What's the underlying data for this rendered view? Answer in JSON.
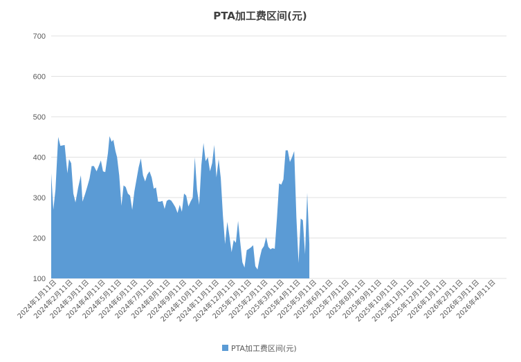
{
  "chart_data": {
    "type": "area",
    "title": "PTA加工费区间(元)",
    "xlabel": "",
    "ylabel": "",
    "ylim": [
      100,
      700
    ],
    "yticks": [
      100,
      200,
      300,
      400,
      500,
      600,
      700
    ],
    "grid": true,
    "legend_position": "bottom",
    "color": "#5b9bd5",
    "x_tick_labels": [
      "2024年1月11日",
      "2024年2月11日",
      "2024年3月11日",
      "2024年4月11日",
      "2024年5月11日",
      "2024年6月11日",
      "2024年7月11日",
      "2024年8月11日",
      "2024年9月11日",
      "2024年10月11日",
      "2024年11月11日",
      "2024年12月11日",
      "2025年1月11日",
      "2025年2月11日",
      "2025年3月11日",
      "2025年4月11日",
      "2025年5月11日",
      "2025年6月11日",
      "2025年7月11日",
      "2025年8月11日",
      "2025年9月11日",
      "2025年10月11日",
      "2025年11月11日",
      "2025年12月11日",
      "2026年1月11日",
      "2026年2月11日",
      "2026年3月11日",
      "2026年4月11日"
    ],
    "series": [
      {
        "name": "PTA加工费区间(元)",
        "points": [
          [
            "2024-01-11",
            360
          ],
          [
            "2024-01-15",
            270
          ],
          [
            "2024-01-19",
            320
          ],
          [
            "2024-01-24",
            450
          ],
          [
            "2024-01-28",
            428
          ],
          [
            "2024-02-05",
            430
          ],
          [
            "2024-02-10",
            360
          ],
          [
            "2024-02-13",
            395
          ],
          [
            "2024-02-17",
            385
          ],
          [
            "2024-02-21",
            310
          ],
          [
            "2024-02-25",
            288
          ],
          [
            "2024-03-01",
            325
          ],
          [
            "2024-03-06",
            355
          ],
          [
            "2024-03-09",
            290
          ],
          [
            "2024-03-14",
            310
          ],
          [
            "2024-03-18",
            328
          ],
          [
            "2024-03-22",
            347
          ],
          [
            "2024-03-26",
            378
          ],
          [
            "2024-03-30",
            378
          ],
          [
            "2024-04-04",
            365
          ],
          [
            "2024-04-08",
            378
          ],
          [
            "2024-04-12",
            392
          ],
          [
            "2024-04-16",
            365
          ],
          [
            "2024-04-20",
            363
          ],
          [
            "2024-04-25",
            410
          ],
          [
            "2024-04-28",
            452
          ],
          [
            "2024-05-02",
            438
          ],
          [
            "2024-05-05",
            443
          ],
          [
            "2024-05-09",
            415
          ],
          [
            "2024-05-12",
            400
          ],
          [
            "2024-05-16",
            355
          ],
          [
            "2024-05-20",
            280
          ],
          [
            "2024-05-24",
            330
          ],
          [
            "2024-05-28",
            326
          ],
          [
            "2024-06-01",
            310
          ],
          [
            "2024-06-05",
            305
          ],
          [
            "2024-06-09",
            270
          ],
          [
            "2024-06-13",
            315
          ],
          [
            "2024-06-17",
            345
          ],
          [
            "2024-06-21",
            375
          ],
          [
            "2024-06-25",
            397
          ],
          [
            "2024-06-29",
            355
          ],
          [
            "2024-07-03",
            340
          ],
          [
            "2024-07-07",
            357
          ],
          [
            "2024-07-11",
            365
          ],
          [
            "2024-07-15",
            350
          ],
          [
            "2024-07-19",
            322
          ],
          [
            "2024-07-23",
            325
          ],
          [
            "2024-07-27",
            290
          ],
          [
            "2024-07-31",
            290
          ],
          [
            "2024-08-04",
            292
          ],
          [
            "2024-08-08",
            272
          ],
          [
            "2024-08-12",
            292
          ],
          [
            "2024-08-16",
            295
          ],
          [
            "2024-08-20",
            293
          ],
          [
            "2024-08-24",
            285
          ],
          [
            "2024-08-28",
            276
          ],
          [
            "2024-09-01",
            262
          ],
          [
            "2024-09-05",
            282
          ],
          [
            "2024-09-09",
            265
          ],
          [
            "2024-09-13",
            310
          ],
          [
            "2024-09-17",
            305
          ],
          [
            "2024-09-21",
            278
          ],
          [
            "2024-09-25",
            290
          ],
          [
            "2024-09-29",
            300
          ],
          [
            "2024-10-03",
            400
          ],
          [
            "2024-10-07",
            320
          ],
          [
            "2024-10-11",
            282
          ],
          [
            "2024-10-15",
            380
          ],
          [
            "2024-10-19",
            435
          ],
          [
            "2024-10-23",
            390
          ],
          [
            "2024-10-27",
            400
          ],
          [
            "2024-10-31",
            365
          ],
          [
            "2024-11-04",
            385
          ],
          [
            "2024-11-08",
            430
          ],
          [
            "2024-11-12",
            350
          ],
          [
            "2024-11-16",
            395
          ],
          [
            "2024-11-20",
            348
          ],
          [
            "2024-11-24",
            255
          ],
          [
            "2024-11-28",
            185
          ],
          [
            "2024-12-02",
            240
          ],
          [
            "2024-12-06",
            205
          ],
          [
            "2024-12-10",
            165
          ],
          [
            "2024-12-14",
            195
          ],
          [
            "2024-12-18",
            188
          ],
          [
            "2024-12-22",
            242
          ],
          [
            "2024-12-26",
            190
          ],
          [
            "2024-12-30",
            140
          ],
          [
            "2025-01-03",
            127
          ],
          [
            "2025-01-07",
            170
          ],
          [
            "2025-01-11",
            173
          ],
          [
            "2025-01-15",
            177
          ],
          [
            "2025-01-19",
            182
          ],
          [
            "2025-01-23",
            130
          ],
          [
            "2025-01-27",
            122
          ],
          [
            "2025-01-31",
            150
          ],
          [
            "2025-02-04",
            172
          ],
          [
            "2025-02-08",
            180
          ],
          [
            "2025-02-12",
            202
          ],
          [
            "2025-02-16",
            178
          ],
          [
            "2025-02-20",
            172
          ],
          [
            "2025-02-24",
            175
          ],
          [
            "2025-02-28",
            173
          ],
          [
            "2025-03-04",
            250
          ],
          [
            "2025-03-08",
            335
          ],
          [
            "2025-03-12",
            332
          ],
          [
            "2025-03-16",
            345
          ],
          [
            "2025-03-20",
            417
          ],
          [
            "2025-03-24",
            417
          ],
          [
            "2025-03-28",
            388
          ],
          [
            "2025-04-01",
            400
          ],
          [
            "2025-04-05",
            415
          ],
          [
            "2025-04-09",
            250
          ],
          [
            "2025-04-13",
            138
          ],
          [
            "2025-04-17",
            248
          ],
          [
            "2025-04-21",
            244
          ],
          [
            "2025-04-25",
            160
          ],
          [
            "2025-04-29",
            312
          ],
          [
            "2025-05-03",
            185
          ]
        ]
      }
    ]
  }
}
